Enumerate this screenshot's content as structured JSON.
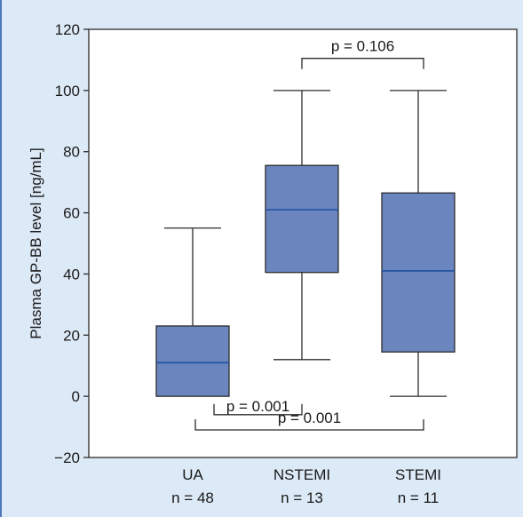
{
  "colors": {
    "background": "#dce9f6",
    "plot_area": "#ffffff",
    "box_fill": "#6b86bf",
    "box_stroke": "#2c2c2c",
    "median": "#1f4f9e",
    "frame": "#4a78b8"
  },
  "chart_data": {
    "type": "box",
    "title": "",
    "ylabel": "Plasma GP-BB level [ng/mL]",
    "xlabel": "",
    "ylim": [
      -20,
      120
    ],
    "yticks": [
      -20,
      0,
      20,
      40,
      60,
      80,
      100,
      120
    ],
    "grid": false,
    "categories": [
      {
        "label": "UA",
        "n_label": "n = 48",
        "min": 0,
        "q1": 0,
        "median": 11,
        "q3": 23,
        "max": 55
      },
      {
        "label": "NSTEMI",
        "n_label": "n = 13",
        "min": 12,
        "q1": 40.5,
        "median": 61,
        "q3": 75.5,
        "max": 100
      },
      {
        "label": "STEMI",
        "n_label": "n = 11",
        "min": 0,
        "q1": 14.5,
        "median": 41,
        "q3": 66.5,
        "max": 100
      }
    ],
    "annotations": [
      {
        "text": "p = 0.106",
        "from": 1,
        "to": 2,
        "level": 110.5,
        "direction": "down",
        "text_side": "above"
      },
      {
        "text": "p = 0.001",
        "from": 0,
        "to": 1,
        "level": -6,
        "direction": "up",
        "text_side": "inside"
      },
      {
        "text": "p = 0.001",
        "from": 0,
        "to": 2,
        "level": -11,
        "direction": "up",
        "text_side": "above"
      }
    ]
  }
}
